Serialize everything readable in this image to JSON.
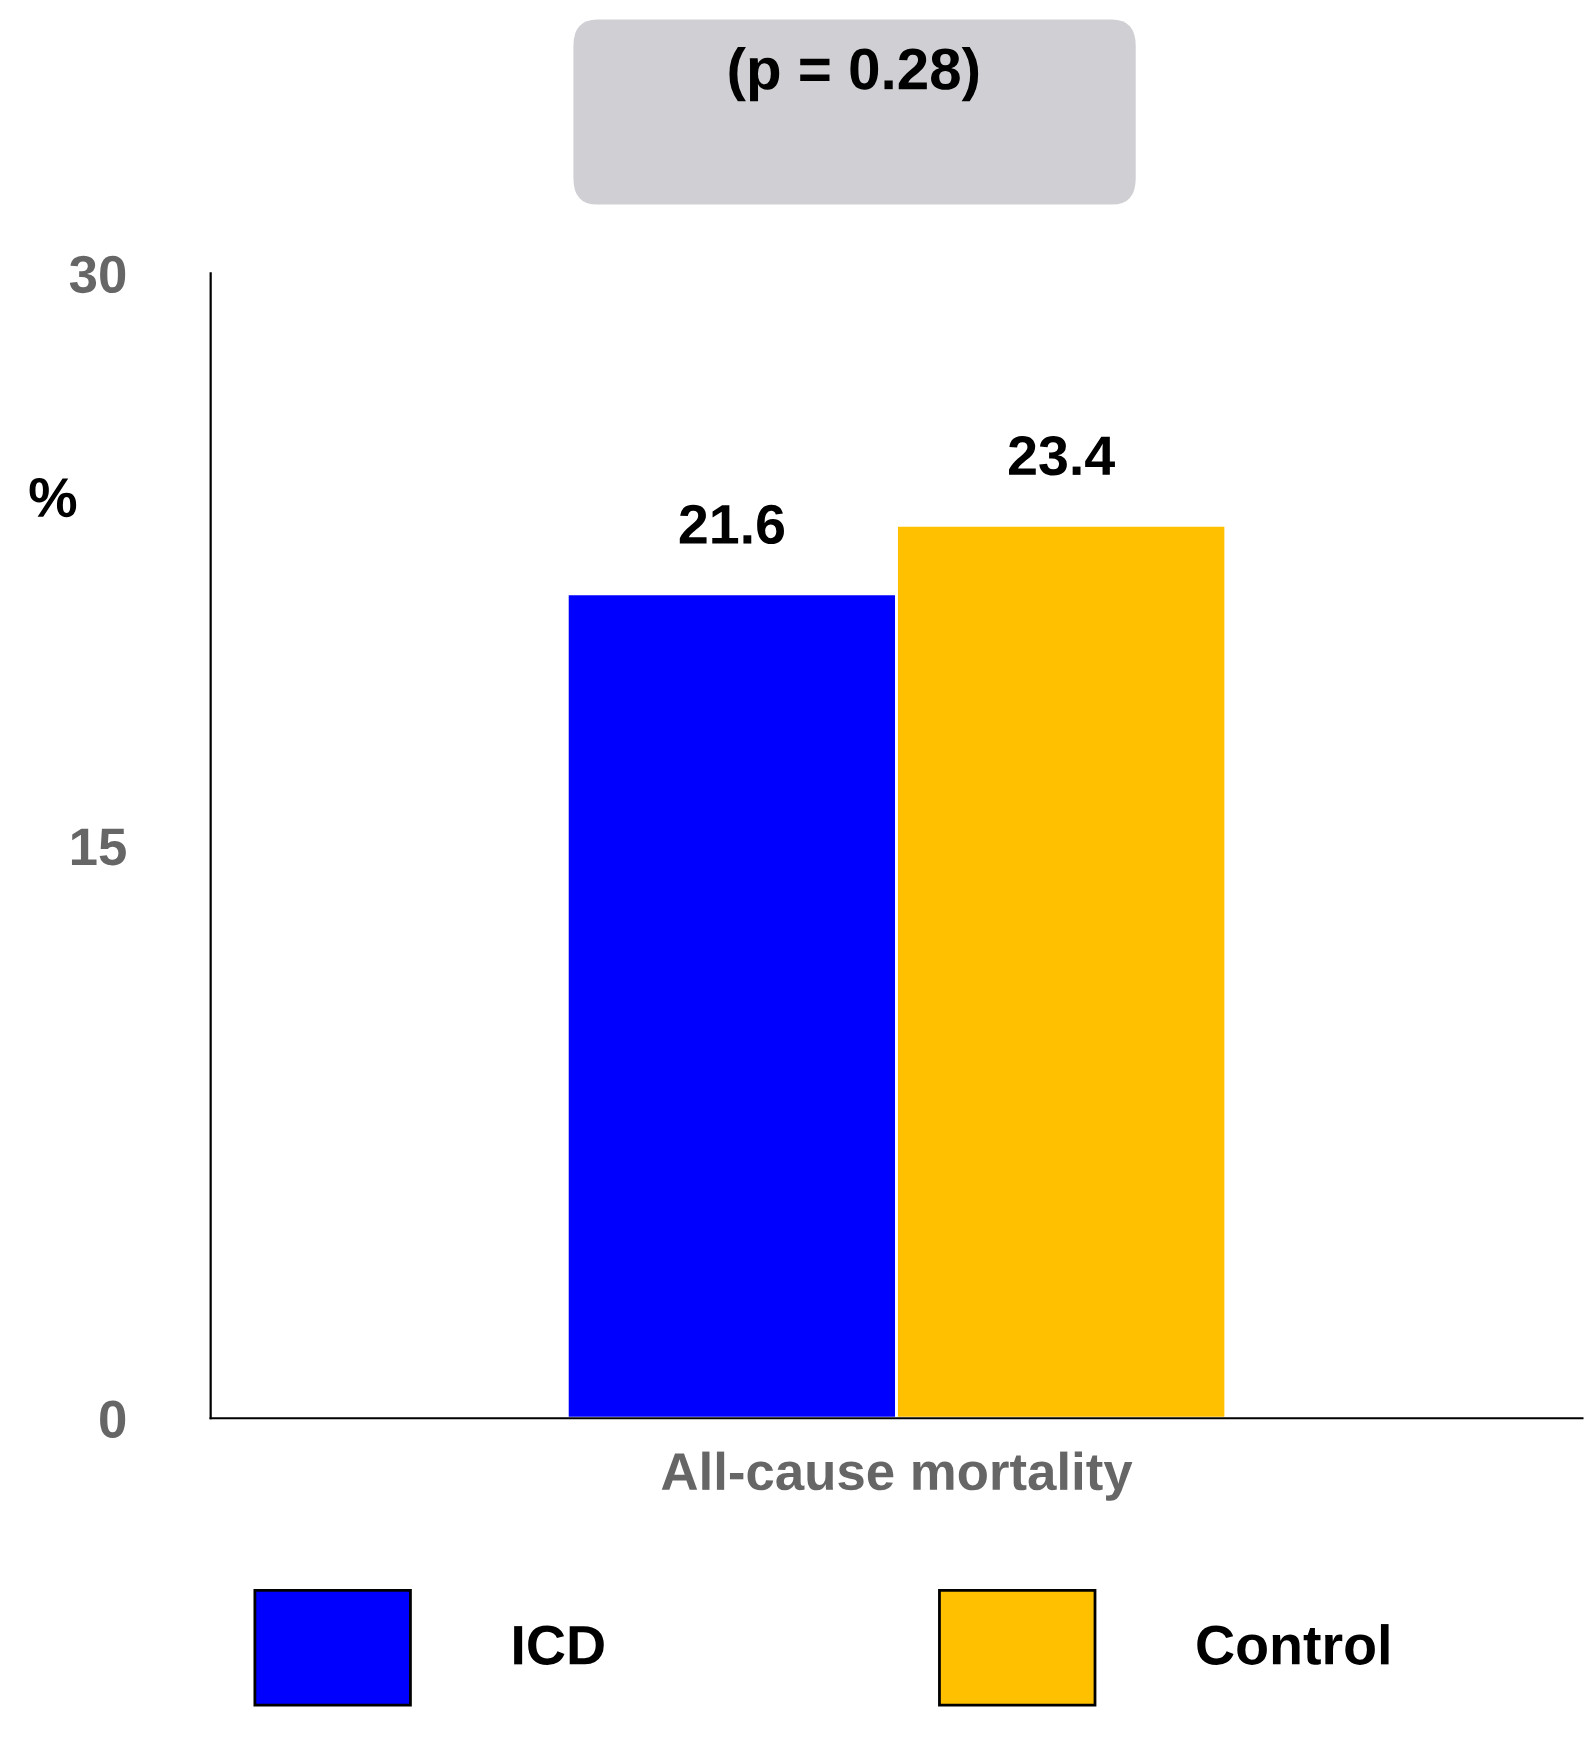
{
  "chart_data": {
    "type": "bar",
    "annotations": [
      "(p = 0.28)"
    ],
    "ylabel": "%",
    "categories": [
      "All-cause mortality"
    ],
    "series": [
      {
        "name": "ICD",
        "color": "#0000ff",
        "values": [
          21.6
        ]
      },
      {
        "name": "Control",
        "color": "#ffc000",
        "values": [
          23.4
        ]
      }
    ],
    "ylim": [
      0,
      30
    ],
    "yticks": [
      0,
      15,
      30
    ],
    "data_labels": true,
    "grid": false,
    "legend": "bottom"
  }
}
